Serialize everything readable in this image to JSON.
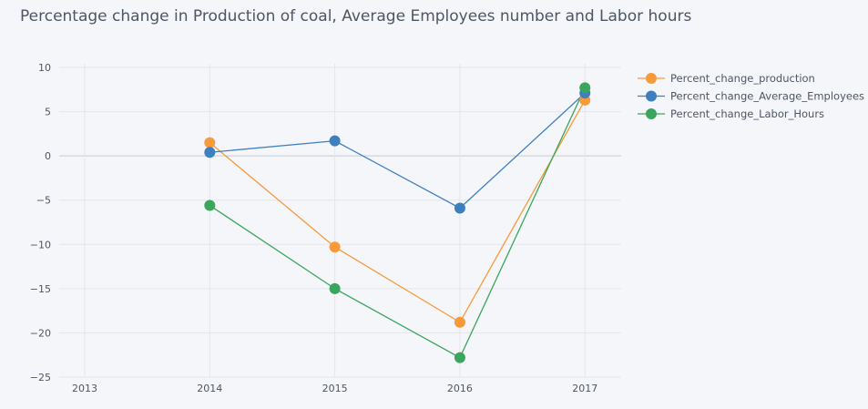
{
  "chart_data": {
    "type": "line",
    "title": "Percentage change in Production of coal, Average Employees number and Labor hours",
    "xlabel": "",
    "ylabel": "",
    "x": [
      2014,
      2015,
      2016,
      2017
    ],
    "x_ticks": [
      "2013",
      "2014",
      "2015",
      "2016",
      "2017"
    ],
    "xlim": [
      2013,
      2017
    ],
    "y_ticks": [
      "10",
      "5",
      "0",
      "−5",
      "−10",
      "−15",
      "−20",
      "−25"
    ],
    "ylim": [
      -25,
      10
    ],
    "grid": true,
    "legend_position": "top-right",
    "series": [
      {
        "name": "Percent_change_production",
        "color": "#f79a3a",
        "values": [
          1.5,
          -10.3,
          -18.8,
          6.3
        ]
      },
      {
        "name": "Percent_change_Average_Employees",
        "color": "#3e7fbf",
        "values": [
          0.4,
          1.7,
          -5.9,
          7.1
        ]
      },
      {
        "name": "Percent_change_Labor_Hours",
        "color": "#3aa55d",
        "values": [
          -5.6,
          -15.0,
          -22.8,
          7.7
        ]
      }
    ]
  }
}
